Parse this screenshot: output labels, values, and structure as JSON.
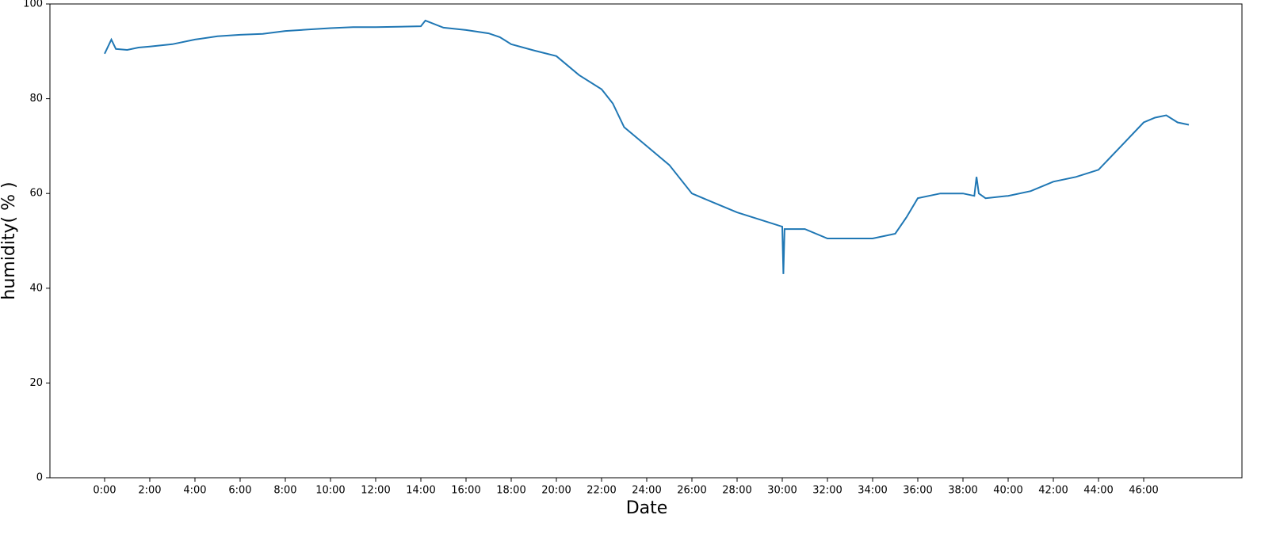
{
  "chart_data": {
    "type": "line",
    "xlabel": "Date",
    "ylabel": "humidity( % )",
    "x": [
      0,
      0.3,
      0.5,
      1,
      1.5,
      2,
      3,
      4,
      5,
      6,
      7,
      8,
      9,
      10,
      11,
      12,
      13,
      14,
      14.2,
      15,
      16,
      17,
      17.5,
      18,
      19,
      20,
      20.5,
      21,
      22,
      22.5,
      23,
      24,
      25,
      26,
      27,
      28,
      29,
      30,
      30.05,
      30.1,
      31,
      32,
      33,
      34,
      35,
      35.5,
      36,
      37,
      38,
      38.5,
      38.6,
      38.7,
      39,
      40,
      41,
      42,
      43,
      44,
      45,
      46,
      46.5,
      47,
      47.5,
      48
    ],
    "series": [
      {
        "name": "humidity",
        "color": "#1f77b4",
        "values": [
          89.5,
          92.5,
          90.5,
          90.3,
          90.8,
          91,
          91.5,
          92.5,
          93.2,
          93.5,
          93.7,
          94.3,
          94.6,
          94.9,
          95.1,
          95.1,
          95.2,
          95.3,
          96.5,
          95,
          94.5,
          93.8,
          93,
          91.5,
          90.2,
          89,
          87,
          85,
          82,
          79,
          74,
          70,
          66,
          60,
          58,
          56,
          54.5,
          53,
          43,
          52.5,
          52.5,
          50.5,
          50.5,
          50.5,
          51.5,
          55,
          59,
          60,
          60,
          59.5,
          63.5,
          60,
          59,
          59.5,
          60.5,
          62.5,
          63.5,
          65,
          70,
          75,
          76,
          76.5,
          75,
          74.5
        ]
      }
    ],
    "xlim": [
      -2.42,
      50.35
    ],
    "ylim": [
      0,
      100
    ],
    "xticks": [
      {
        "value": 0,
        "label": "0:00"
      },
      {
        "value": 2,
        "label": "2:00"
      },
      {
        "value": 4,
        "label": "4:00"
      },
      {
        "value": 6,
        "label": "6:00"
      },
      {
        "value": 8,
        "label": "8:00"
      },
      {
        "value": 10,
        "label": "10:00"
      },
      {
        "value": 12,
        "label": "12:00"
      },
      {
        "value": 14,
        "label": "14:00"
      },
      {
        "value": 16,
        "label": "16:00"
      },
      {
        "value": 18,
        "label": "18:00"
      },
      {
        "value": 20,
        "label": "20:00"
      },
      {
        "value": 22,
        "label": "22:00"
      },
      {
        "value": 24,
        "label": "24:00"
      },
      {
        "value": 26,
        "label": "26:00"
      },
      {
        "value": 28,
        "label": "28:00"
      },
      {
        "value": 30,
        "label": "30:00"
      },
      {
        "value": 32,
        "label": "32:00"
      },
      {
        "value": 34,
        "label": "34:00"
      },
      {
        "value": 36,
        "label": "36:00"
      },
      {
        "value": 38,
        "label": "38:00"
      },
      {
        "value": 40,
        "label": "40:00"
      },
      {
        "value": 42,
        "label": "42:00"
      },
      {
        "value": 44,
        "label": "44:00"
      },
      {
        "value": 46,
        "label": "46:00"
      }
    ],
    "yticks": [
      0,
      20,
      40,
      60,
      80,
      100
    ]
  }
}
